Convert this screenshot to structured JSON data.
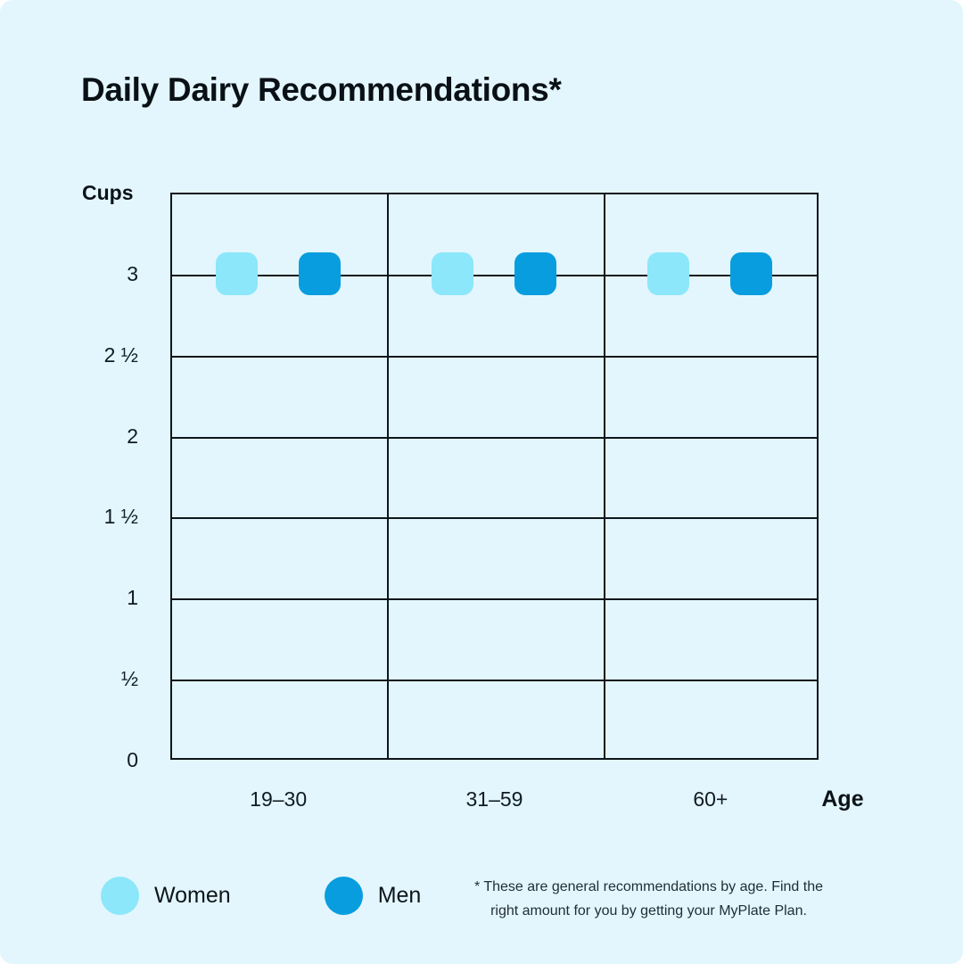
{
  "page": {
    "title": "Daily Dairy Recommendations*",
    "background_color": "#E3F6FD",
    "grid_color": "#0E161B"
  },
  "chart_data": {
    "type": "scatter",
    "title": "Daily Dairy Recommendations*",
    "categories": [
      "19–30",
      "31–59",
      "60+"
    ],
    "series": [
      {
        "name": "Women",
        "color": "#8CE7FA",
        "values": [
          3,
          3,
          3
        ]
      },
      {
        "name": "Men",
        "color": "#089DDE",
        "values": [
          3,
          3,
          3
        ]
      }
    ],
    "xlabel": "Age",
    "ylabel": "Cups",
    "ylim": [
      0,
      3.5
    ],
    "ytick_step": 0.5,
    "yticks": [
      {
        "label": "3",
        "value": 3
      },
      {
        "label": "2 ½",
        "value": 2.5
      },
      {
        "label": "2",
        "value": 2
      },
      {
        "label": "1 ½",
        "value": 1.5
      },
      {
        "label": "1",
        "value": 1
      },
      {
        "label": "½",
        "value": 0.5
      },
      {
        "label": "0",
        "value": 0
      }
    ],
    "grid": true,
    "marker_shape": "rounded-square",
    "legend_position": "bottom-left"
  },
  "legend": {
    "items": [
      {
        "label": "Women",
        "color": "#8CE7FA"
      },
      {
        "label": "Men",
        "color": "#089DDE"
      }
    ]
  },
  "footnote": {
    "lines": [
      "* These are general recommendations by age. Find the",
      "right amount for you by getting your MyPlate Plan."
    ]
  }
}
